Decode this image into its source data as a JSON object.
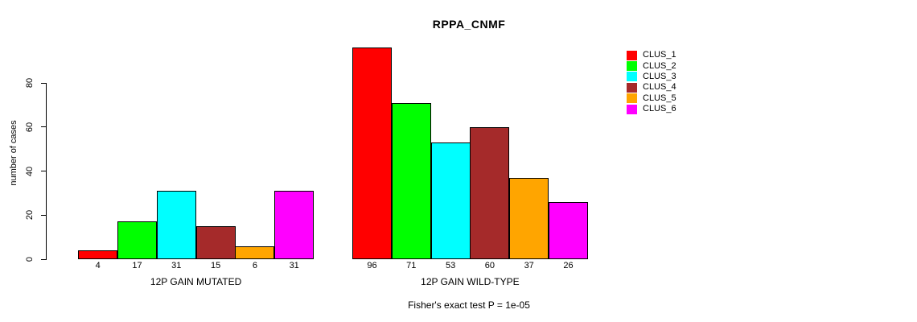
{
  "title": "RPPA_CNMF",
  "subtitle": "Fisher's exact test P = 1e-05",
  "chart_data": {
    "type": "bar",
    "title": "RPPA_CNMF",
    "xlabel": "",
    "ylabel": "number of cases",
    "ylim": [
      0,
      96
    ],
    "yticks": [
      0,
      20,
      40,
      60,
      80
    ],
    "grid": false,
    "legend_position": "right",
    "series_labels": [
      "CLUS_1",
      "CLUS_2",
      "CLUS_3",
      "CLUS_4",
      "CLUS_5",
      "CLUS_6"
    ],
    "colors": [
      "#FF0000",
      "#00FF00",
      "#00FFFF",
      "#A52A2A",
      "#FFA500",
      "#FF00FF"
    ],
    "groups": [
      {
        "label": "12P GAIN MUTATED",
        "values": [
          4,
          17,
          31,
          15,
          6,
          31
        ]
      },
      {
        "label": "12P GAIN WILD-TYPE",
        "values": [
          96,
          71,
          53,
          60,
          37,
          26
        ]
      }
    ],
    "annotation": "Fisher's exact test P = 1e-05"
  }
}
